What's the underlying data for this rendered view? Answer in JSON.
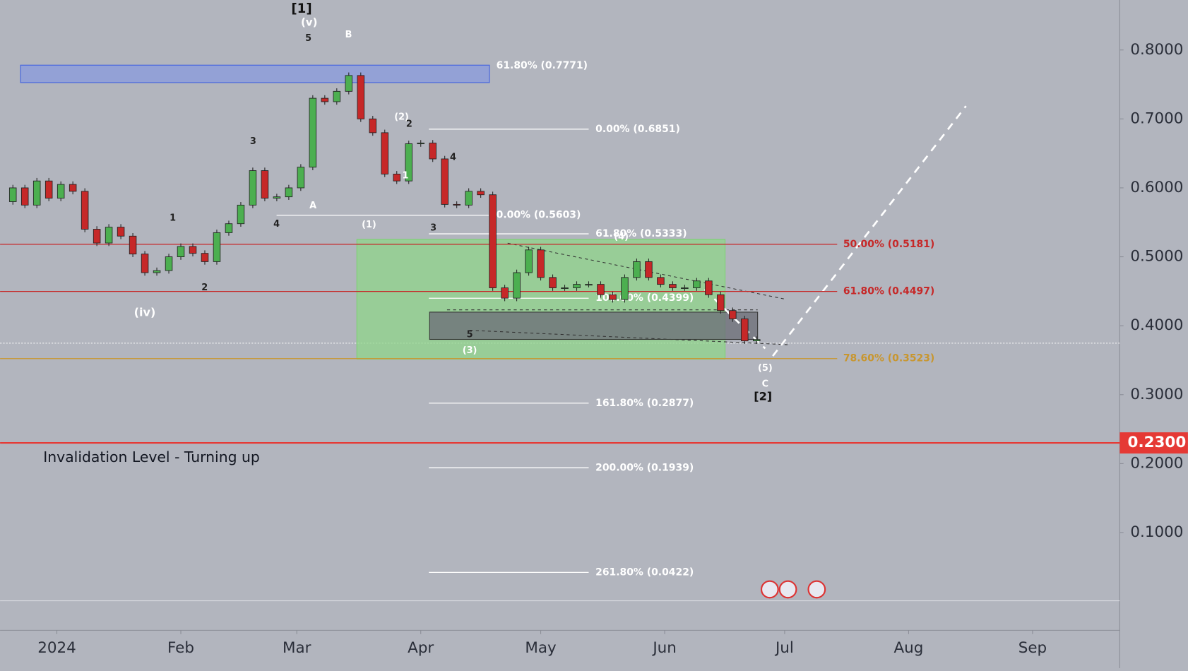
{
  "chart_data": {
    "type": "candlestick",
    "x": [
      -14,
      -11,
      -8,
      -5,
      -2,
      1,
      4,
      7,
      10,
      13,
      16,
      19,
      22,
      25,
      28,
      31,
      34,
      37,
      40,
      43,
      46,
      49,
      52,
      55,
      58,
      61,
      64,
      67,
      70,
      73,
      76,
      79,
      82,
      85,
      88,
      91,
      94,
      97,
      100,
      103,
      106,
      109,
      112,
      115,
      118,
      121,
      124,
      127,
      130,
      133,
      136,
      139,
      142,
      145,
      148,
      151,
      154,
      157,
      160,
      163,
      166,
      169,
      172,
      175
    ],
    "close": [
      0.58,
      0.6,
      0.575,
      0.61,
      0.585,
      0.605,
      0.595,
      0.54,
      0.52,
      0.543,
      0.53,
      0.504,
      0.477,
      0.48,
      0.5,
      0.515,
      0.505,
      0.493,
      0.535,
      0.548,
      0.575,
      0.625,
      0.585,
      0.587,
      0.6,
      0.63,
      0.73,
      0.725,
      0.74,
      0.763,
      0.7,
      0.68,
      0.62,
      0.61,
      0.664,
      0.665,
      0.642,
      0.576,
      0.575,
      0.595,
      0.59,
      0.455,
      0.44,
      0.477,
      0.51,
      0.47,
      0.455,
      0.455,
      0.46,
      0.46,
      0.445,
      0.438,
      0.47,
      0.493,
      0.47,
      0.46,
      0.455,
      0.455,
      0.465,
      0.445,
      0.422,
      0.41,
      0.378,
      0.38
    ],
    "colors": {
      "up": "#4caf50",
      "down": "#c62828"
    },
    "xlim": [
      -14.2,
      265.8
    ],
    "ylim": [
      -0.0418,
      0.8725
    ],
    "xticks": [
      {
        "value": 0,
        "label": "2024"
      },
      {
        "value": 31,
        "label": "Feb"
      },
      {
        "value": 60,
        "label": "Mar"
      },
      {
        "value": 91,
        "label": "Apr"
      },
      {
        "value": 121,
        "label": "May"
      },
      {
        "value": 152,
        "label": "Jun"
      },
      {
        "value": 182,
        "label": "Jul"
      },
      {
        "value": 213,
        "label": "Aug"
      },
      {
        "value": 244,
        "label": "Sep"
      }
    ],
    "yticks": [
      {
        "value": 0.8,
        "label": "0.8000"
      },
      {
        "value": 0.7,
        "label": "0.7000"
      },
      {
        "value": 0.6,
        "label": "0.6000"
      },
      {
        "value": 0.5,
        "label": "0.5000"
      },
      {
        "value": 0.4,
        "label": "0.4000"
      },
      {
        "value": 0.3,
        "label": "0.3000"
      },
      {
        "value": 0.2,
        "label": "0.2000"
      },
      {
        "value": 0.1,
        "label": "0.1000"
      }
    ],
    "fib_levels": [
      {
        "level": 0.7771,
        "label": "61.80% (0.7771)",
        "color": "#ffffff"
      },
      {
        "level": 0.6851,
        "label": "0.00% (0.6851)",
        "color": "#ffffff"
      },
      {
        "level": 0.5603,
        "label": "0.00% (0.5603)",
        "color": "#ffffff"
      },
      {
        "level": 0.5333,
        "label": "61.80% (0.5333)",
        "color": "#ffffff"
      },
      {
        "level": 0.4399,
        "label": "100.00% (0.4399)",
        "color": "#ffffff"
      },
      {
        "level": 0.2877,
        "label": "161.80% (0.2877)",
        "color": "#ffffff"
      },
      {
        "level": 0.1939,
        "label": "200.00% (0.1939)",
        "color": "#ffffff"
      },
      {
        "level": 0.0422,
        "label": "261.80% (0.0422)",
        "color": "#ffffff"
      },
      {
        "level": 0.5181,
        "label": "50.00% (0.5181)",
        "color": "#c62828"
      },
      {
        "level": 0.4497,
        "label": "61.80% (0.4497)",
        "color": "#c62828"
      },
      {
        "level": 0.3523,
        "label": "78.60% (0.3523)",
        "color": "#c8962e"
      }
    ],
    "invalidation": {
      "value": 0.23,
      "label": "0.2300",
      "text": "Invalidation Level - Turning up",
      "color": "#e53935"
    },
    "wave_labels": [
      "[1]",
      "(v)",
      "5",
      "B",
      "3",
      "1",
      "4",
      "2",
      "(iv)",
      "A",
      "(2)",
      "2",
      "1",
      "4",
      "(1)",
      "3",
      "(4)",
      "5",
      "(3)",
      "(5)",
      "C",
      "[2]"
    ]
  }
}
